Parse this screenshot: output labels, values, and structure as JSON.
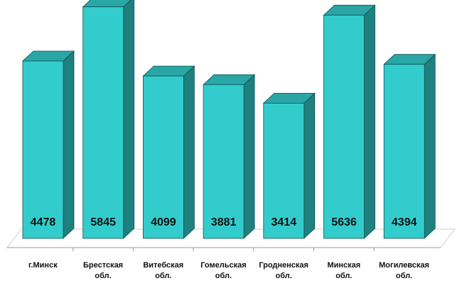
{
  "chart_data": {
    "type": "bar",
    "categories": [
      [
        "г.Минск"
      ],
      [
        "Брестская",
        "обл."
      ],
      [
        "Витебская",
        "обл."
      ],
      [
        "Гомельская",
        "обл."
      ],
      [
        "Гродненская",
        "обл."
      ],
      [
        "Минская",
        "обл."
      ],
      [
        "Могилевская",
        "обл."
      ]
    ],
    "values": [
      4478,
      5845,
      4099,
      3881,
      3414,
      5636,
      4394
    ],
    "data_labels": [
      "4478",
      "5845",
      "4099",
      "3881",
      "3414",
      "5636",
      "4394"
    ],
    "title": "",
    "xlabel": "",
    "ylabel": "",
    "ylim": [
      0,
      6000
    ],
    "grid": false,
    "legend": "none",
    "style": "3d-columns",
    "colors": {
      "front": "#33cccc",
      "side": "#1f8080",
      "top": "#2aa6a6",
      "edge": "#0f5252",
      "floor": "#cfcfcf"
    }
  }
}
